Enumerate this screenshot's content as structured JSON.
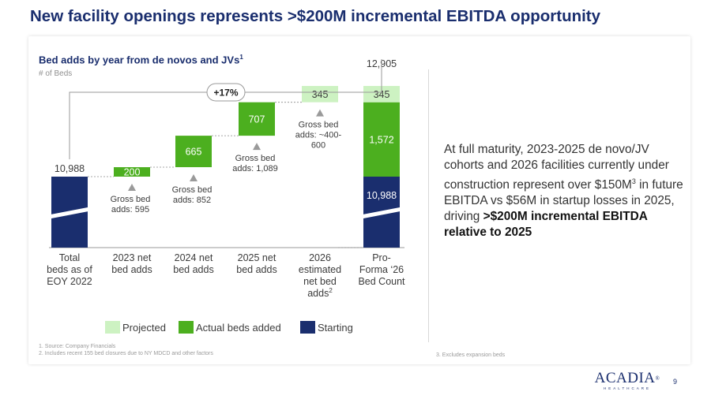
{
  "page": {
    "title": "New facility openings represents >$200M incremental EBITDA opportunity",
    "page_number": "9"
  },
  "callout": {
    "text_1": "At full maturity, 2023-2025 de novo/JV cohorts and 2026 facilities currently under construction represent over $150M",
    "sup": "3",
    "text_2": " in future EBITDA vs $56M in startup losses in 2025, driving ",
    "bold": ">$200M incremental EBITDA relative to 2025"
  },
  "footnotes": {
    "left": [
      "1.   Source: Company Financials",
      "2.   Includes recent 155 bed closures due to NY MDCD and other factors"
    ],
    "right": "3.   Excludes expansion beds"
  },
  "logo": {
    "name": "ACADIA",
    "registered": "®",
    "sub": "HEALTHCARE"
  },
  "colors": {
    "starting": "#1a2e6e",
    "actual": "#4caf1f",
    "projected": "#cdf2c2",
    "title": "#1a2e6e"
  },
  "chart_data": {
    "type": "bar",
    "title": "Bed adds by year from de novos and JVs",
    "title_sup": "1",
    "ylabel": "# of Beds",
    "categories": [
      [
        "Total",
        "beds as of",
        "EOY 2022"
      ],
      [
        "2023 net",
        "bed adds"
      ],
      [
        "2024 net",
        "bed adds"
      ],
      [
        "2025 net",
        "bed adds"
      ],
      [
        "2026",
        "estimated",
        "net bed",
        "adds"
      ],
      [
        "Pro-",
        "Forma ‘26",
        "Bed Count"
      ]
    ],
    "category_sup": [
      "",
      "",
      "",
      "",
      "2",
      ""
    ],
    "bars": [
      {
        "segments": [
          {
            "series": "starting",
            "base": 0,
            "value": 10988,
            "label": "10,988"
          }
        ],
        "top_label": "10,988"
      },
      {
        "segments": [
          {
            "series": "actual",
            "base": 10988,
            "value": 200,
            "label": "200"
          }
        ],
        "annotation": [
          "Gross bed",
          "adds: 595"
        ]
      },
      {
        "segments": [
          {
            "series": "actual",
            "base": 11188,
            "value": 665,
            "label": "665"
          }
        ],
        "annotation": [
          "Gross bed",
          "adds: 852"
        ]
      },
      {
        "segments": [
          {
            "series": "actual",
            "base": 11853,
            "value": 707,
            "label": "707"
          }
        ],
        "annotation": [
          "Gross bed",
          "adds: 1,089"
        ]
      },
      {
        "segments": [
          {
            "series": "projected",
            "base": 12560,
            "value": 345,
            "label": "345"
          }
        ],
        "annotation": [
          "Gross bed",
          "adds: ~400-",
          "600"
        ]
      },
      {
        "segments": [
          {
            "series": "starting",
            "base": 0,
            "value": 10988,
            "label": "10,988"
          },
          {
            "series": "actual",
            "base": 10988,
            "value": 1572,
            "label": "1,572"
          },
          {
            "series": "projected",
            "base": 12560,
            "value": 345,
            "label": "345"
          }
        ],
        "top_label": "12,905"
      }
    ],
    "growth_label": "+17%",
    "legend": [
      {
        "series": "projected",
        "label": "Projected"
      },
      {
        "series": "actual",
        "label": "Actual beds added"
      },
      {
        "series": "starting",
        "label": "Starting"
      }
    ],
    "axis_break": true
  }
}
